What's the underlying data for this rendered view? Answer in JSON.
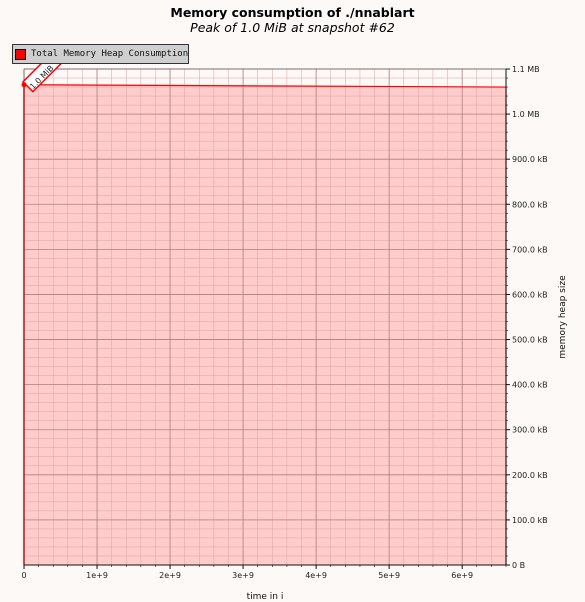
{
  "chart_data": {
    "type": "area",
    "title": "Memory consumption of ./nnablart",
    "subtitle": "Peak of 1.0 MiB at snapshot #62",
    "xlabel": "time in i",
    "ylabel": "memory heap size",
    "legend": {
      "entries": [
        "Total Memory Heap Consumption"
      ],
      "placement": "top-left"
    },
    "peak_annotation": "1.0 MiB",
    "colors": {
      "fill": "#ffcccc",
      "line": "#ff0000",
      "grid_major": "#b08080",
      "grid_minor": "#dca2a2",
      "background": "#fcf9f6"
    },
    "xlim": [
      0,
      6600000000
    ],
    "ylim": [
      0,
      1100000
    ],
    "x_ticks": [
      {
        "value": 0,
        "label": "0"
      },
      {
        "value": 1000000000,
        "label": "1e+9"
      },
      {
        "value": 2000000000,
        "label": "2e+9"
      },
      {
        "value": 3000000000,
        "label": "3e+9"
      },
      {
        "value": 4000000000,
        "label": "4e+9"
      },
      {
        "value": 5000000000,
        "label": "5e+9"
      },
      {
        "value": 6000000000,
        "label": "6e+9"
      }
    ],
    "y_ticks": [
      {
        "value": 0,
        "label": "0 B"
      },
      {
        "value": 100000,
        "label": "100.0 kB"
      },
      {
        "value": 200000,
        "label": "200.0 kB"
      },
      {
        "value": 300000,
        "label": "300.0 kB"
      },
      {
        "value": 400000,
        "label": "400.0 kB"
      },
      {
        "value": 500000,
        "label": "500.0 kB"
      },
      {
        "value": 600000,
        "label": "600.0 kB"
      },
      {
        "value": 700000,
        "label": "700.0 kB"
      },
      {
        "value": 800000,
        "label": "800.0 kB"
      },
      {
        "value": 900000,
        "label": "900.0 kB"
      },
      {
        "value": 1000000,
        "label": "1.0 MB"
      },
      {
        "value": 1100000,
        "label": "1.1 MB"
      }
    ],
    "series": [
      {
        "name": "Total Memory Heap Consumption",
        "x": [
          0,
          1,
          6600000000
        ],
        "y": [
          0,
          1065000,
          1060000
        ]
      }
    ],
    "grid": true
  }
}
